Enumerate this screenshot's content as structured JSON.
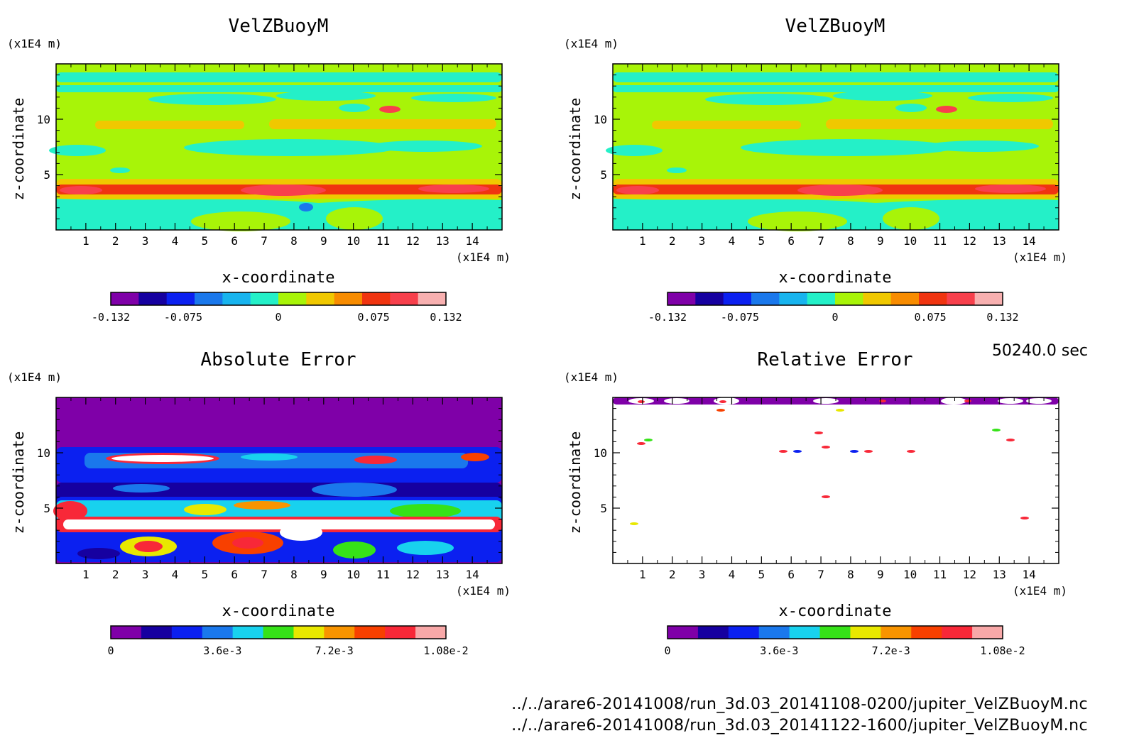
{
  "time_label": "50240.0 sec",
  "files": [
    "../../arare6-20141008/run_3d.03_20141108-0200/jupiter_VelZBuoyM.nc",
    "../../arare6-20141008/run_3d.03_20141122-1600/jupiter_VelZBuoyM.nc"
  ],
  "colors": {
    "scale_velocity": [
      "#7f00a8",
      "#1600a0",
      "#0b20f0",
      "#1a78ec",
      "#18b4ee",
      "#24f0c8",
      "#a8f408",
      "#f0c800",
      "#f88c00",
      "#f03410",
      "#f8404c",
      "#f8b0b0"
    ],
    "scale_error": [
      "#7f00a8",
      "#1600a0",
      "#0b20f0",
      "#1a78ec",
      "#18d2ee",
      "#36e218",
      "#e8e800",
      "#f89400",
      "#f84000",
      "#f82838",
      "#f8a8a8"
    ]
  },
  "chart_data": [
    {
      "type": "heatmap",
      "title": "VelZBuoyM",
      "xlabel": "x-coordinate",
      "ylabel": "z-coordinate",
      "x_unit": "(x1E4 m)",
      "y_unit": "(x1E4 m)",
      "xlim": [
        0,
        15
      ],
      "ylim": [
        0,
        15
      ],
      "xticks": [
        "1",
        "2",
        "3",
        "4",
        "5",
        "6",
        "7",
        "8",
        "9",
        "10",
        "11",
        "12",
        "13",
        "14"
      ],
      "yticks": [
        "5",
        "10"
      ],
      "colorbar": {
        "levels": [
          -0.132,
          0.132
        ],
        "tick_labels": [
          "-0.132",
          "-0.075",
          "0",
          "0.075",
          "0.132"
        ],
        "scale": "velocity"
      }
    },
    {
      "type": "heatmap",
      "title": "VelZBuoyM",
      "xlabel": "x-coordinate",
      "ylabel": "z-coordinate",
      "x_unit": "(x1E4 m)",
      "y_unit": "(x1E4 m)",
      "xlim": [
        0,
        15
      ],
      "ylim": [
        0,
        15
      ],
      "xticks": [
        "1",
        "2",
        "3",
        "4",
        "5",
        "6",
        "7",
        "8",
        "9",
        "10",
        "11",
        "12",
        "13",
        "14"
      ],
      "yticks": [
        "5",
        "10"
      ],
      "colorbar": {
        "levels": [
          -0.132,
          0.132
        ],
        "tick_labels": [
          "-0.132",
          "-0.075",
          "0",
          "0.075",
          "0.132"
        ],
        "scale": "velocity"
      }
    },
    {
      "type": "heatmap",
      "title": "Absolute Error",
      "xlabel": "x-coordinate",
      "ylabel": "z-coordinate",
      "x_unit": "(x1E4 m)",
      "y_unit": "(x1E4 m)",
      "xlim": [
        0,
        15
      ],
      "ylim": [
        0,
        15
      ],
      "xticks": [
        "1",
        "2",
        "3",
        "4",
        "5",
        "6",
        "7",
        "8",
        "9",
        "10",
        "11",
        "12",
        "13",
        "14"
      ],
      "yticks": [
        "5",
        "10"
      ],
      "colorbar": {
        "levels": [
          0,
          0.0108
        ],
        "tick_labels": [
          "0",
          "3.6e-3",
          "7.2e-3",
          "1.08e-2"
        ],
        "scale": "error"
      }
    },
    {
      "type": "heatmap",
      "title": "Relative Error",
      "xlabel": "x-coordinate",
      "ylabel": "z-coordinate",
      "x_unit": "(x1E4 m)",
      "y_unit": "(x1E4 m)",
      "xlim": [
        0,
        15
      ],
      "ylim": [
        0,
        15
      ],
      "xticks": [
        "1",
        "2",
        "3",
        "4",
        "5",
        "6",
        "7",
        "8",
        "9",
        "10",
        "11",
        "12",
        "13",
        "14"
      ],
      "yticks": [
        "5",
        "10"
      ],
      "colorbar": {
        "levels": [
          0,
          0.0108
        ],
        "tick_labels": [
          "0",
          "3.6e-3",
          "7.2e-3",
          "1.08e-2"
        ],
        "scale": "error"
      }
    }
  ]
}
